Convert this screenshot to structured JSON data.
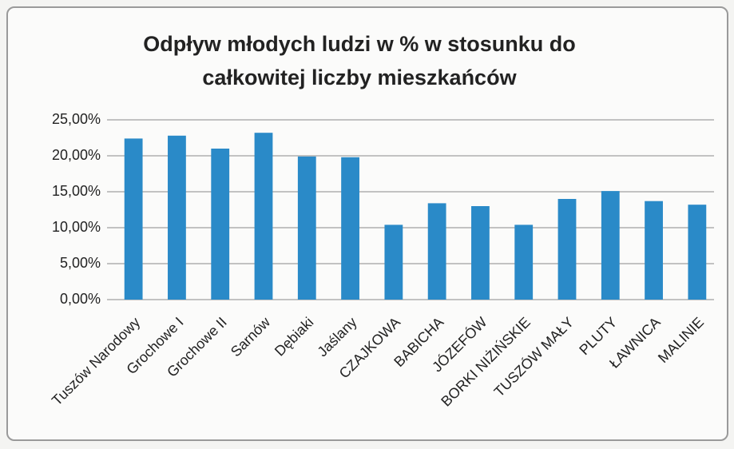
{
  "chart_data": {
    "type": "bar",
    "title": "Odpływ młodych ludzi w % w stosunku do całkowitej liczby mieszkańców",
    "categories": [
      "Tuszów Narodowy",
      "Grochowe I",
      "Grochowe II",
      "Sarnów",
      "Dębiaki",
      "Jaślany",
      "CZAJKOWA",
      "BABICHA",
      "JÓZEFÓW",
      "BORKI NIŻIŃSKIE",
      "TUSZÓW MAŁY",
      "PLUTY",
      "ŁAWNICA",
      "MALINIE"
    ],
    "values": [
      22.4,
      22.8,
      21.0,
      23.2,
      19.9,
      19.8,
      10.4,
      13.4,
      13.0,
      10.4,
      14.0,
      15.1,
      13.7,
      13.2
    ],
    "color": "#2a8ac8",
    "ylim": [
      0,
      25
    ],
    "yticks": [
      {
        "value": 0,
        "label": "0,00%"
      },
      {
        "value": 5,
        "label": "5,00%"
      },
      {
        "value": 10,
        "label": "10,00%"
      },
      {
        "value": 15,
        "label": "15,00%"
      },
      {
        "value": 20,
        "label": "20,00%"
      },
      {
        "value": 25,
        "label": "25,00%"
      }
    ],
    "grid": true
  }
}
